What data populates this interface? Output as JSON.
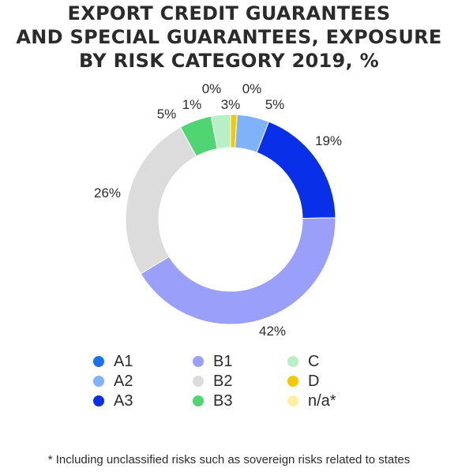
{
  "title_lines": [
    "EXPORT CREDIT GUARANTEES",
    "AND SPECIAL GUARANTEES, EXPOSURE",
    "BY RISK CATEGORY 2019, %"
  ],
  "footnote": "* Including unclassified risks such as sovereign risks related to states",
  "chart_data": {
    "type": "pie",
    "donut": true,
    "title": "EXPORT CREDIT GUARANTEES AND SPECIAL GUARANTEES, EXPOSURE BY RISK CATEGORY 2019, %",
    "categories": [
      "A1",
      "A2",
      "A3",
      "B1",
      "B2",
      "B3",
      "C",
      "D",
      "n/a*"
    ],
    "values": [
      0,
      5,
      19,
      42,
      26,
      5,
      3,
      1,
      0
    ],
    "labels": [
      "0%",
      "5%",
      "19%",
      "42%",
      "26%",
      "5%",
      "3%",
      "1%",
      "0%"
    ],
    "colors": [
      "#1a73e8",
      "#7fb2fb",
      "#0a2fe8",
      "#9aa0fa",
      "#dcdcdc",
      "#4fd672",
      "#b8efc6",
      "#f5c800",
      "#fff0a0"
    ],
    "legend_position": "bottom",
    "legend_columns": [
      [
        "A1",
        "A2",
        "A3"
      ],
      [
        "B1",
        "B2",
        "B3"
      ],
      [
        "C",
        "D",
        "n/a*"
      ]
    ]
  }
}
